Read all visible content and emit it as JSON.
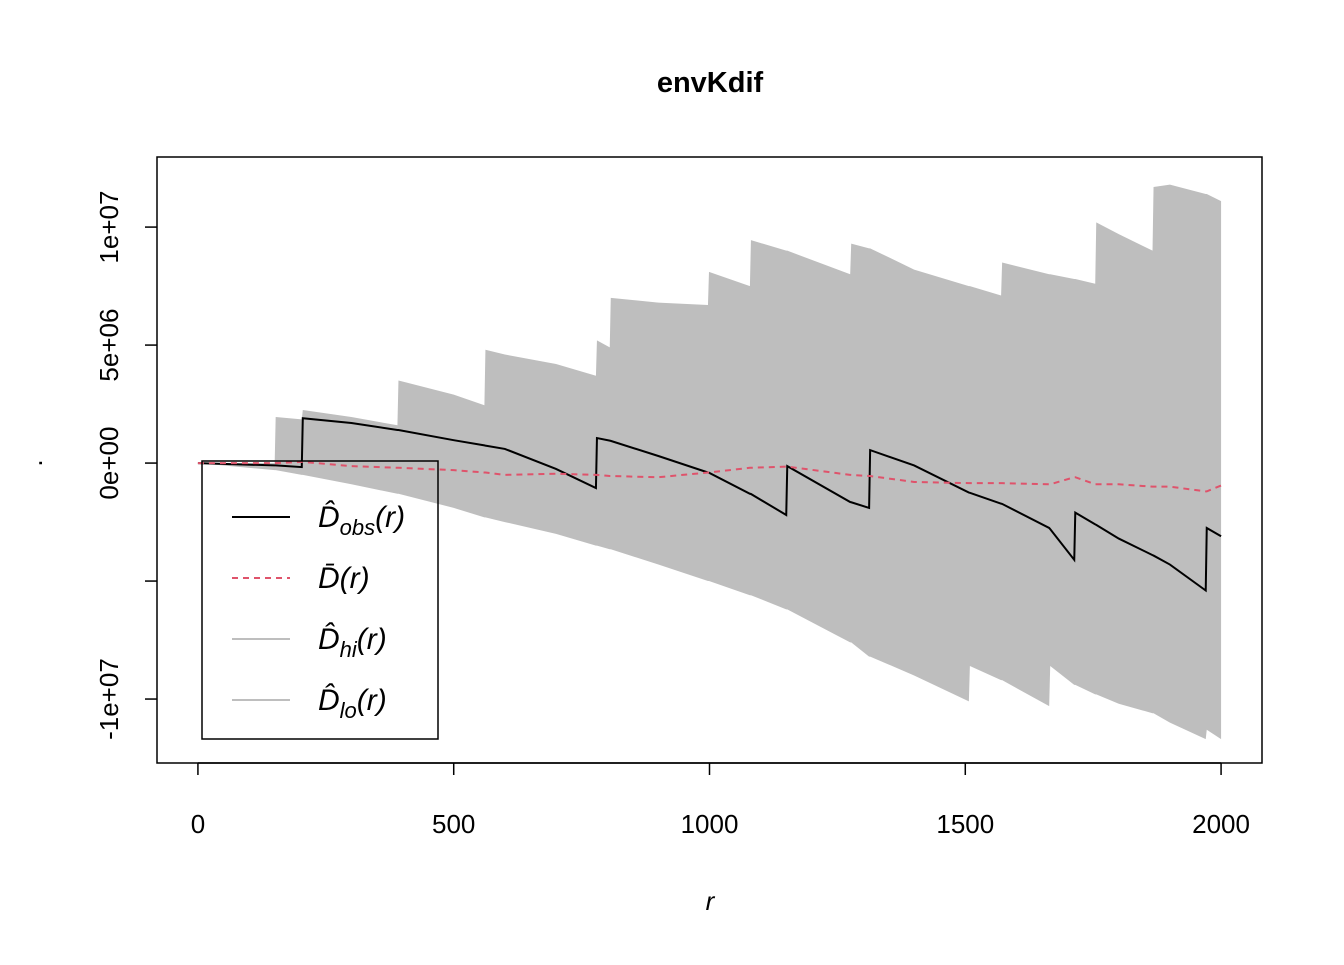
{
  "chart_data": {
    "type": "envelope",
    "title": "envKdif",
    "x_label": "r",
    "y_label": ".",
    "xlim": [
      -80,
      2080
    ],
    "ylim": [
      -12710000.0,
      12970000.0
    ],
    "xticks": [
      0,
      500,
      1000,
      1500,
      2000
    ],
    "yticks": [
      {
        "value": -10000000.0,
        "label": "-1e+07"
      },
      {
        "value": -5000000.0,
        "label": null
      },
      {
        "value": 0,
        "label": "0e+00"
      },
      {
        "value": 5000000.0,
        "label": "5e+06"
      },
      {
        "value": 10000000.0,
        "label": "1e+07"
      }
    ],
    "legend": "bottomleft",
    "shade_color": "#BEBEBE",
    "x": [
      0,
      150,
      152,
      203,
      205,
      300,
      390,
      392,
      500,
      560,
      562,
      600,
      700,
      778,
      780,
      805,
      807,
      900,
      997,
      999,
      1079,
      1081,
      1150,
      1152,
      1275,
      1277,
      1312,
      1314,
      1400,
      1507,
      1509,
      1570,
      1572,
      1664,
      1666,
      1713,
      1715,
      1754,
      1756,
      1800,
      1866,
      1868,
      1900,
      1970,
      1972,
      2000
    ],
    "series": [
      {
        "name": {
          "symbol": "D̂",
          "sub": "obs",
          "arg": "(r)"
        },
        "color": "#000000",
        "dash": false,
        "role": "line",
        "values": [
          0,
          -100000.0,
          -100000.0,
          -170000.0,
          1900000.0,
          1700000.0,
          1400000.0,
          1400000.0,
          970000.0,
          750000.0,
          740000.0,
          600000.0,
          -250000.0,
          -1060000.0,
          1060000.0,
          950000.0,
          940000.0,
          300000.0,
          -400000.0,
          -410000.0,
          -1300000.0,
          -1310000.0,
          -2200000.0,
          -130000.0,
          -1650000.0,
          -1660000.0,
          -1900000.0,
          550000.0,
          -100000.0,
          -1250000.0,
          -1260000.0,
          -1720000.0,
          -1730000.0,
          -2750000.0,
          -2800000.0,
          -4100000.0,
          -2100000.0,
          -2600000.0,
          -2620000.0,
          -3200000.0,
          -3900000.0,
          -3920000.0,
          -4300000.0,
          -5400000.0,
          -2750000.0,
          -3100000.0
        ]
      },
      {
        "name": {
          "symbol": "D̄",
          "sub": null,
          "arg": "(r)"
        },
        "color": "#DF536B",
        "dash": true,
        "role": "line",
        "values": [
          0,
          0,
          0,
          50000.0,
          50000.0,
          -130000.0,
          -200000.0,
          -200000.0,
          -300000.0,
          -400000.0,
          -400000.0,
          -500000.0,
          -450000.0,
          -500000.0,
          -500000.0,
          -550000.0,
          -550000.0,
          -600000.0,
          -400000.0,
          -400000.0,
          -200000.0,
          -200000.0,
          -150000.0,
          -150000.0,
          -500000.0,
          -500000.0,
          -550000.0,
          -550000.0,
          -800000.0,
          -850000.0,
          -850000.0,
          -850000.0,
          -850000.0,
          -900000.0,
          -900000.0,
          -600000.0,
          -600000.0,
          -900000.0,
          -900000.0,
          -900000.0,
          -1000000.0,
          -1000000.0,
          -1000000.0,
          -1200000.0,
          -1200000.0,
          -950000.0
        ]
      },
      {
        "name": {
          "symbol": "D̂",
          "sub": "hi",
          "arg": "(r)"
        },
        "color": "#BEBEBE",
        "dash": false,
        "role": "upper",
        "values": [
          0,
          0,
          1950000.0,
          1850000.0,
          2250000.0,
          1950000.0,
          1600000.0,
          3500000.0,
          2900000.0,
          2450000.0,
          4800000.0,
          4600000.0,
          4200000.0,
          3700000.0,
          5200000.0,
          4900000.0,
          7000000.0,
          6800000.0,
          6700000.0,
          8100000.0,
          7500000.0,
          9450000.0,
          9000000.0,
          9000000.0,
          8000000.0,
          9300000.0,
          9100000.0,
          9100000.0,
          8200000.0,
          7500000.0,
          7500000.0,
          7100000.0,
          8500000.0,
          8000000.0,
          8000000.0,
          7800000.0,
          7800000.0,
          7600000.0,
          10200000.0,
          9700000.0,
          9000000.0,
          11700000.0,
          11800000.0,
          11400000.0,
          11400000.0,
          11100000.0
        ]
      },
      {
        "name": {
          "symbol": "D̂",
          "sub": "lo",
          "arg": "(r)"
        },
        "color": "#BEBEBE",
        "dash": false,
        "role": "lower",
        "values": [
          0,
          -300000.0,
          -300000.0,
          -500000.0,
          -500000.0,
          -900000.0,
          -1300000.0,
          -1300000.0,
          -1900000.0,
          -2300000.0,
          -2300000.0,
          -2500000.0,
          -3000000.0,
          -3500000.0,
          -3500000.0,
          -3650000.0,
          -3650000.0,
          -4300000.0,
          -5000000.0,
          -5000000.0,
          -5600000.0,
          -5600000.0,
          -6200000.0,
          -6200000.0,
          -7600000.0,
          -7600000.0,
          -8200000.0,
          -8200000.0,
          -9000000.0,
          -10100000.0,
          -8600000.0,
          -9200000.0,
          -9200000.0,
          -10300000.0,
          -8600000.0,
          -9400000.0,
          -9400000.0,
          -9800000.0,
          -9800000.0,
          -10200000.0,
          -10600000.0,
          -10600000.0,
          -11000000.0,
          -11700000.0,
          -11300000.0,
          -11700000.0
        ]
      }
    ]
  }
}
